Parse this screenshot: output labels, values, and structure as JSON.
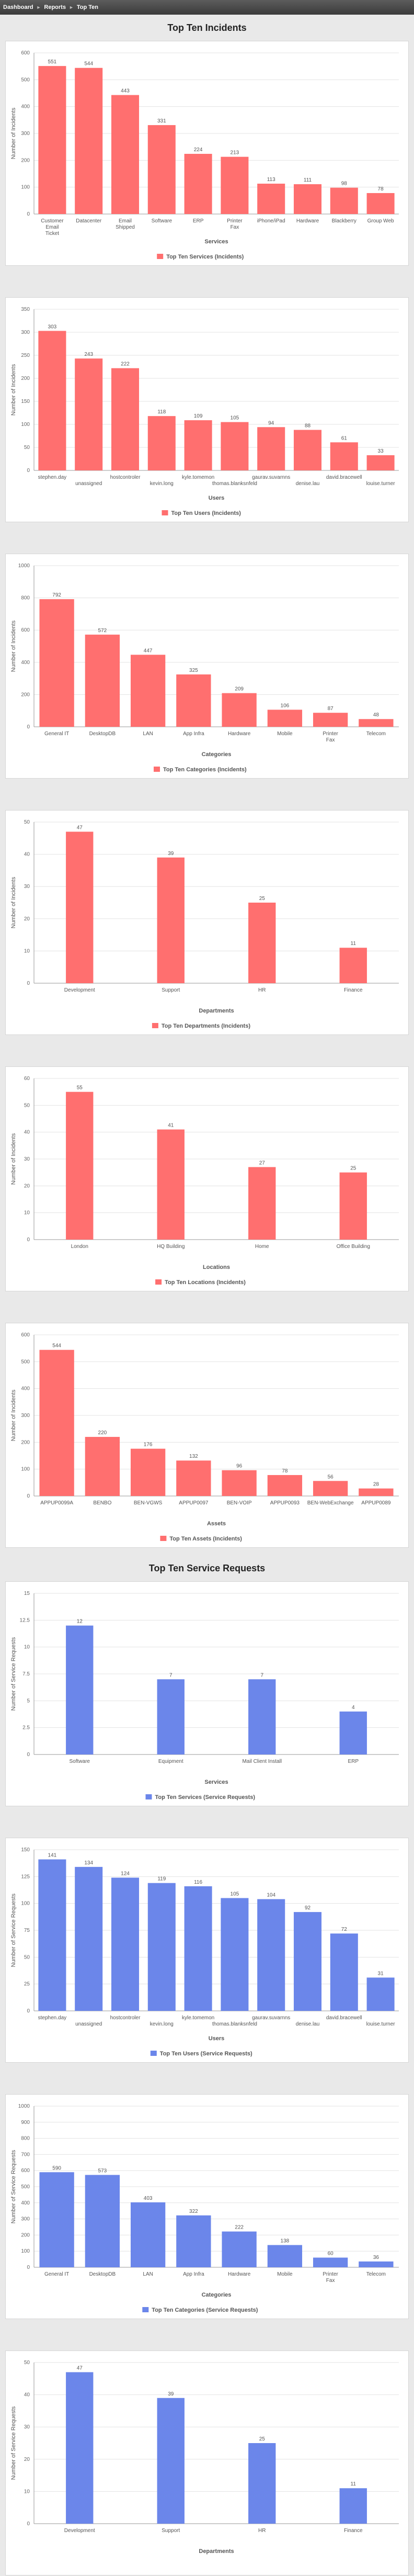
{
  "breadcrumb": {
    "items": [
      "Dashboard",
      "Reports",
      "Top Ten"
    ]
  },
  "sections": {
    "incidents": "Top Ten Incidents",
    "requests": "Top Ten Service Requests"
  },
  "colors": {
    "incident_bar": "#ff6f6f",
    "request_bar": "#6b86ea",
    "grid": "#e3e3e3"
  },
  "chart_data": [
    {
      "type": "bar",
      "title": "",
      "legend": "Top Ten Services (Incidents)",
      "xlabel": "Services",
      "ylabel": "Number of Incidents",
      "ylim": [
        0,
        600
      ],
      "yticks": [
        0,
        100,
        200,
        300,
        400,
        500,
        600
      ],
      "categories": [
        "Customer Email Ticket",
        "Datacenter",
        "Email Shipped",
        "Software",
        "ERP",
        "Printer Fax",
        "iPhone/iPad",
        "Hardware",
        "Blackberry",
        "Group Web"
      ],
      "values": [
        551,
        544,
        443,
        331,
        224,
        213,
        113,
        111,
        98,
        78
      ],
      "color": "#ff6f6f"
    },
    {
      "type": "bar",
      "legend": "Top Ten Users (Incidents)",
      "xlabel": "Users",
      "ylabel": "Number of Incidents",
      "ylim": [
        0,
        350
      ],
      "yticks": [
        0,
        50,
        100,
        150,
        200,
        250,
        300,
        350
      ],
      "categories": [
        "stephen.day",
        "unassigned",
        "hostcontroler",
        "kevin.long",
        "kyle.tomemon",
        "thomas.blanksnfeld",
        "gaurav.suvarnns",
        "denise.lau",
        "david.bracewell",
        "louise.turner"
      ],
      "values": [
        303,
        243,
        222,
        118,
        109,
        105,
        94,
        88,
        61,
        33
      ],
      "color": "#ff6f6f"
    },
    {
      "type": "bar",
      "legend": "Top Ten Categories (Incidents)",
      "xlabel": "Categories",
      "ylabel": "Number of Incidents",
      "ylim": [
        0,
        1000
      ],
      "yticks": [
        0,
        200,
        400,
        600,
        800,
        1000
      ],
      "categories": [
        "General IT",
        "DesktopDB",
        "LAN",
        "App Infra",
        "Hardware",
        "Mobile",
        "Printer Fax",
        "Telecom"
      ],
      "values": [
        792,
        572,
        447,
        325,
        209,
        106,
        87,
        48
      ],
      "color": "#ff6f6f"
    },
    {
      "type": "bar",
      "legend": "Top Ten Departments (Incidents)",
      "xlabel": "Departments",
      "ylabel": "Number of Incidents",
      "ylim": [
        0,
        50
      ],
      "yticks": [
        0,
        10,
        20,
        30,
        40,
        50
      ],
      "categories": [
        "Development",
        "Support",
        "HR",
        "Finance"
      ],
      "values": [
        47,
        39,
        25,
        11
      ],
      "color": "#ff6f6f"
    },
    {
      "type": "bar",
      "legend": "Top Ten Locations (Incidents)",
      "xlabel": "Locations",
      "ylabel": "Number of Incidents",
      "ylim": [
        0,
        60
      ],
      "yticks": [
        0,
        10,
        20,
        30,
        40,
        50,
        60
      ],
      "categories": [
        "London",
        "HQ Building",
        "Home",
        "Office Building"
      ],
      "values": [
        55,
        41,
        27,
        25
      ],
      "color": "#ff6f6f"
    },
    {
      "type": "bar",
      "legend": "Top Ten Assets (Incidents)",
      "xlabel": "Assets",
      "ylabel": "Number of Incidents",
      "ylim": [
        0,
        600
      ],
      "yticks": [
        0,
        100,
        200,
        300,
        400,
        500,
        600
      ],
      "categories": [
        "APPUP0099A",
        "BENBO",
        "BEN-VGWS",
        "APPUP0097",
        "BEN-VOIP",
        "APPUP0093",
        "BEN-WebExchange",
        "APPUP0089"
      ],
      "values": [
        544,
        220,
        176,
        132,
        96,
        78,
        56,
        28
      ],
      "color": "#ff6f6f"
    },
    {
      "type": "bar",
      "legend": "Top Ten Services (Service Requests)",
      "xlabel": "Services",
      "ylabel": "Number of Service Requests",
      "ylim": [
        0,
        15
      ],
      "yticks": [
        0,
        2.5,
        5,
        7.5,
        10,
        12.5,
        15
      ],
      "categories": [
        "Software",
        "Equipment",
        "Mail Client Install",
        "ERP"
      ],
      "values": [
        12,
        7,
        7,
        4
      ],
      "color": "#6b86ea"
    },
    {
      "type": "bar",
      "legend": "Top Ten Users (Service Requests)",
      "xlabel": "Users",
      "ylabel": "Number of Service Requests",
      "ylim": [
        0,
        150
      ],
      "yticks": [
        0,
        25,
        50,
        75,
        100,
        125,
        150
      ],
      "categories": [
        "stephen.day",
        "unassigned",
        "hostcontroler",
        "kevin.long",
        "kyle.tomemon",
        "thomas.blanksnfeld",
        "gaurav.suvarnns",
        "denise.lau",
        "david.bracewell",
        "louise.turner"
      ],
      "values": [
        141,
        134,
        124,
        119,
        116,
        105,
        104,
        92,
        72,
        31
      ],
      "color": "#6b86ea"
    },
    {
      "type": "bar",
      "legend": "Top Ten Categories (Service Requests)",
      "xlabel": "Categories",
      "ylabel": "Number of Service Requests",
      "ylim": [
        0,
        1000
      ],
      "yticks": [
        0,
        100,
        200,
        300,
        400,
        500,
        600,
        700,
        800,
        900,
        1000
      ],
      "categories": [
        "General IT",
        "DesktopDB",
        "LAN",
        "App Infra",
        "Hardware",
        "Mobile",
        "Printer Fax",
        "Telecom"
      ],
      "values": [
        590,
        573,
        403,
        322,
        222,
        138,
        60,
        36
      ],
      "color": "#6b86ea"
    },
    {
      "type": "bar",
      "legend": "",
      "xlabel": "Departments",
      "ylabel": "Number of Service Requests",
      "ylim": [
        0,
        50
      ],
      "yticks": [
        0,
        10,
        20,
        30,
        40,
        50
      ],
      "categories": [
        "Development",
        "Support",
        "HR",
        "Finance"
      ],
      "values": [
        47,
        39,
        25,
        11
      ],
      "color": "#6b86ea"
    }
  ]
}
